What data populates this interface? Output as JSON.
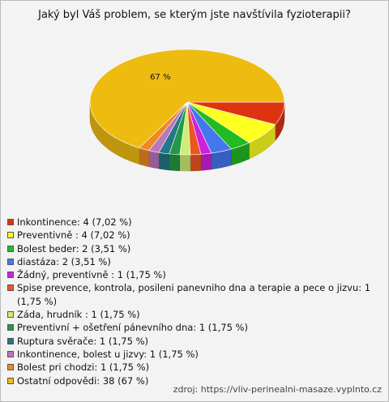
{
  "chart_data": {
    "type": "pie",
    "title": "Jaký byl Váš problem, se kterým jste navštívila fyzioterapii?",
    "categories": [
      "Inkontinence: 4 (7,02 %)",
      "Preventivně : 4 (7,02 %)",
      "Bolest beder: 2 (3,51 %)",
      "diastáza: 2 (3,51 %)",
      "Žádný, preventivně : 1 (1,75 %)",
      "Spise prevence, kontrola, posileni panevniho dna a terapie a pece o jizvu: 1 (1,75 %)",
      "Záda, hrudník : 1 (1,75 %)",
      "Preventivní + ošetření pánevního dna: 1 (1,75 %)",
      "Ruptura svěrače: 1 (1,75 %)",
      "Inkontinence, bolest u jizvy: 1 (1,75 %)",
      "Bolest pri chodzi: 1 (1,75 %)",
      "Ostatní odpovědi: 38 (67 %)"
    ],
    "values": [
      7.02,
      7.02,
      3.51,
      3.51,
      1.75,
      1.75,
      1.75,
      1.75,
      1.75,
      1.75,
      1.75,
      67
    ],
    "value_labels": [
      null,
      null,
      null,
      null,
      null,
      null,
      null,
      null,
      null,
      null,
      null,
      "67 %"
    ],
    "colors": [
      "#dd3311",
      "#ffff22",
      "#22bb22",
      "#4477ee",
      "#cc22dd",
      "#ee5522",
      "#ccee77",
      "#229944",
      "#227788",
      "#bb77bb",
      "#ee8822",
      "#eebb11"
    ],
    "source": "zdroj: https://vliv-perinealni-masaze.vyplnto.cz"
  }
}
